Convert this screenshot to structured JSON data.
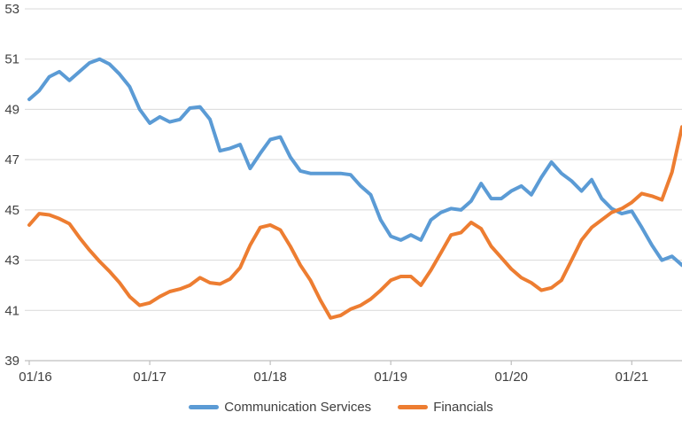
{
  "chart": {
    "background_color": "#ffffff",
    "gridline_color": "#d9d9d9",
    "axis_line_color": "#bfbfbf",
    "tick_color": "#bfbfbf",
    "label_color": "#404040",
    "y_axis": {
      "min": 39,
      "max": 53,
      "step": 2,
      "tick_labels": [
        "39",
        "41",
        "43",
        "45",
        "47",
        "49",
        "51",
        "53"
      ]
    },
    "x_axis": {
      "tick_labels": [
        "01/16",
        "01/17",
        "01/18",
        "01/19",
        "01/20",
        "01/21"
      ],
      "tick_interval_points": 12
    }
  },
  "chart_data": {
    "type": "line",
    "title": "",
    "xlabel": "",
    "ylabel": "",
    "ylim": [
      39,
      53
    ],
    "grid": "horizontal",
    "legend_position": "bottom",
    "categories": [
      "01/16",
      "02/16",
      "03/16",
      "04/16",
      "05/16",
      "06/16",
      "07/16",
      "08/16",
      "09/16",
      "10/16",
      "11/16",
      "12/16",
      "01/17",
      "02/17",
      "03/17",
      "04/17",
      "05/17",
      "06/17",
      "07/17",
      "08/17",
      "09/17",
      "10/17",
      "11/17",
      "12/17",
      "01/18",
      "02/18",
      "03/18",
      "04/18",
      "05/18",
      "06/18",
      "07/18",
      "08/18",
      "09/18",
      "10/18",
      "11/18",
      "12/18",
      "01/19",
      "02/19",
      "03/19",
      "04/19",
      "05/19",
      "06/19",
      "07/19",
      "08/19",
      "09/19",
      "10/19",
      "11/19",
      "12/19",
      "01/20",
      "02/20",
      "03/20",
      "04/20",
      "05/20",
      "06/20",
      "07/20",
      "08/20",
      "09/20",
      "10/20",
      "11/20",
      "12/20",
      "01/21",
      "02/21",
      "03/21",
      "04/21",
      "05/21",
      "06/21"
    ],
    "series": [
      {
        "name": "Communication Services",
        "color": "#5b9bd5",
        "values": [
          49.4,
          49.75,
          50.3,
          50.5,
          50.15,
          50.5,
          50.85,
          51.0,
          50.8,
          50.4,
          49.9,
          49.0,
          48.45,
          48.7,
          48.5,
          48.6,
          49.05,
          49.1,
          48.6,
          47.35,
          47.45,
          47.6,
          46.65,
          47.25,
          47.8,
          47.9,
          47.1,
          46.55,
          46.45,
          46.45,
          46.45,
          46.45,
          46.4,
          45.95,
          45.6,
          44.6,
          43.95,
          43.8,
          44.0,
          43.8,
          44.6,
          44.9,
          45.05,
          45.0,
          45.35,
          46.05,
          45.45,
          45.45,
          45.75,
          45.95,
          45.6,
          46.3,
          46.9,
          46.45,
          46.15,
          45.75,
          46.2,
          45.45,
          45.05,
          44.85,
          44.95,
          44.3,
          43.6,
          43.0,
          43.15,
          42.8
        ]
      },
      {
        "name": "Financials",
        "color": "#ed7d31",
        "values": [
          44.4,
          44.85,
          44.8,
          44.65,
          44.45,
          43.9,
          43.4,
          42.95,
          42.55,
          42.1,
          41.55,
          41.2,
          41.3,
          41.55,
          41.75,
          41.85,
          42.0,
          42.3,
          42.1,
          42.05,
          42.25,
          42.7,
          43.6,
          44.3,
          44.4,
          44.2,
          43.55,
          42.8,
          42.2,
          41.4,
          40.7,
          40.8,
          41.05,
          41.2,
          41.45,
          41.8,
          42.2,
          42.35,
          42.35,
          42.0,
          42.6,
          43.3,
          44.0,
          44.1,
          44.5,
          44.25,
          43.55,
          43.1,
          42.65,
          42.3,
          42.1,
          41.8,
          41.9,
          42.2,
          43.0,
          43.8,
          44.3,
          44.6,
          44.9,
          45.05,
          45.3,
          45.65,
          45.55,
          45.4,
          46.5,
          48.3
        ]
      }
    ]
  }
}
